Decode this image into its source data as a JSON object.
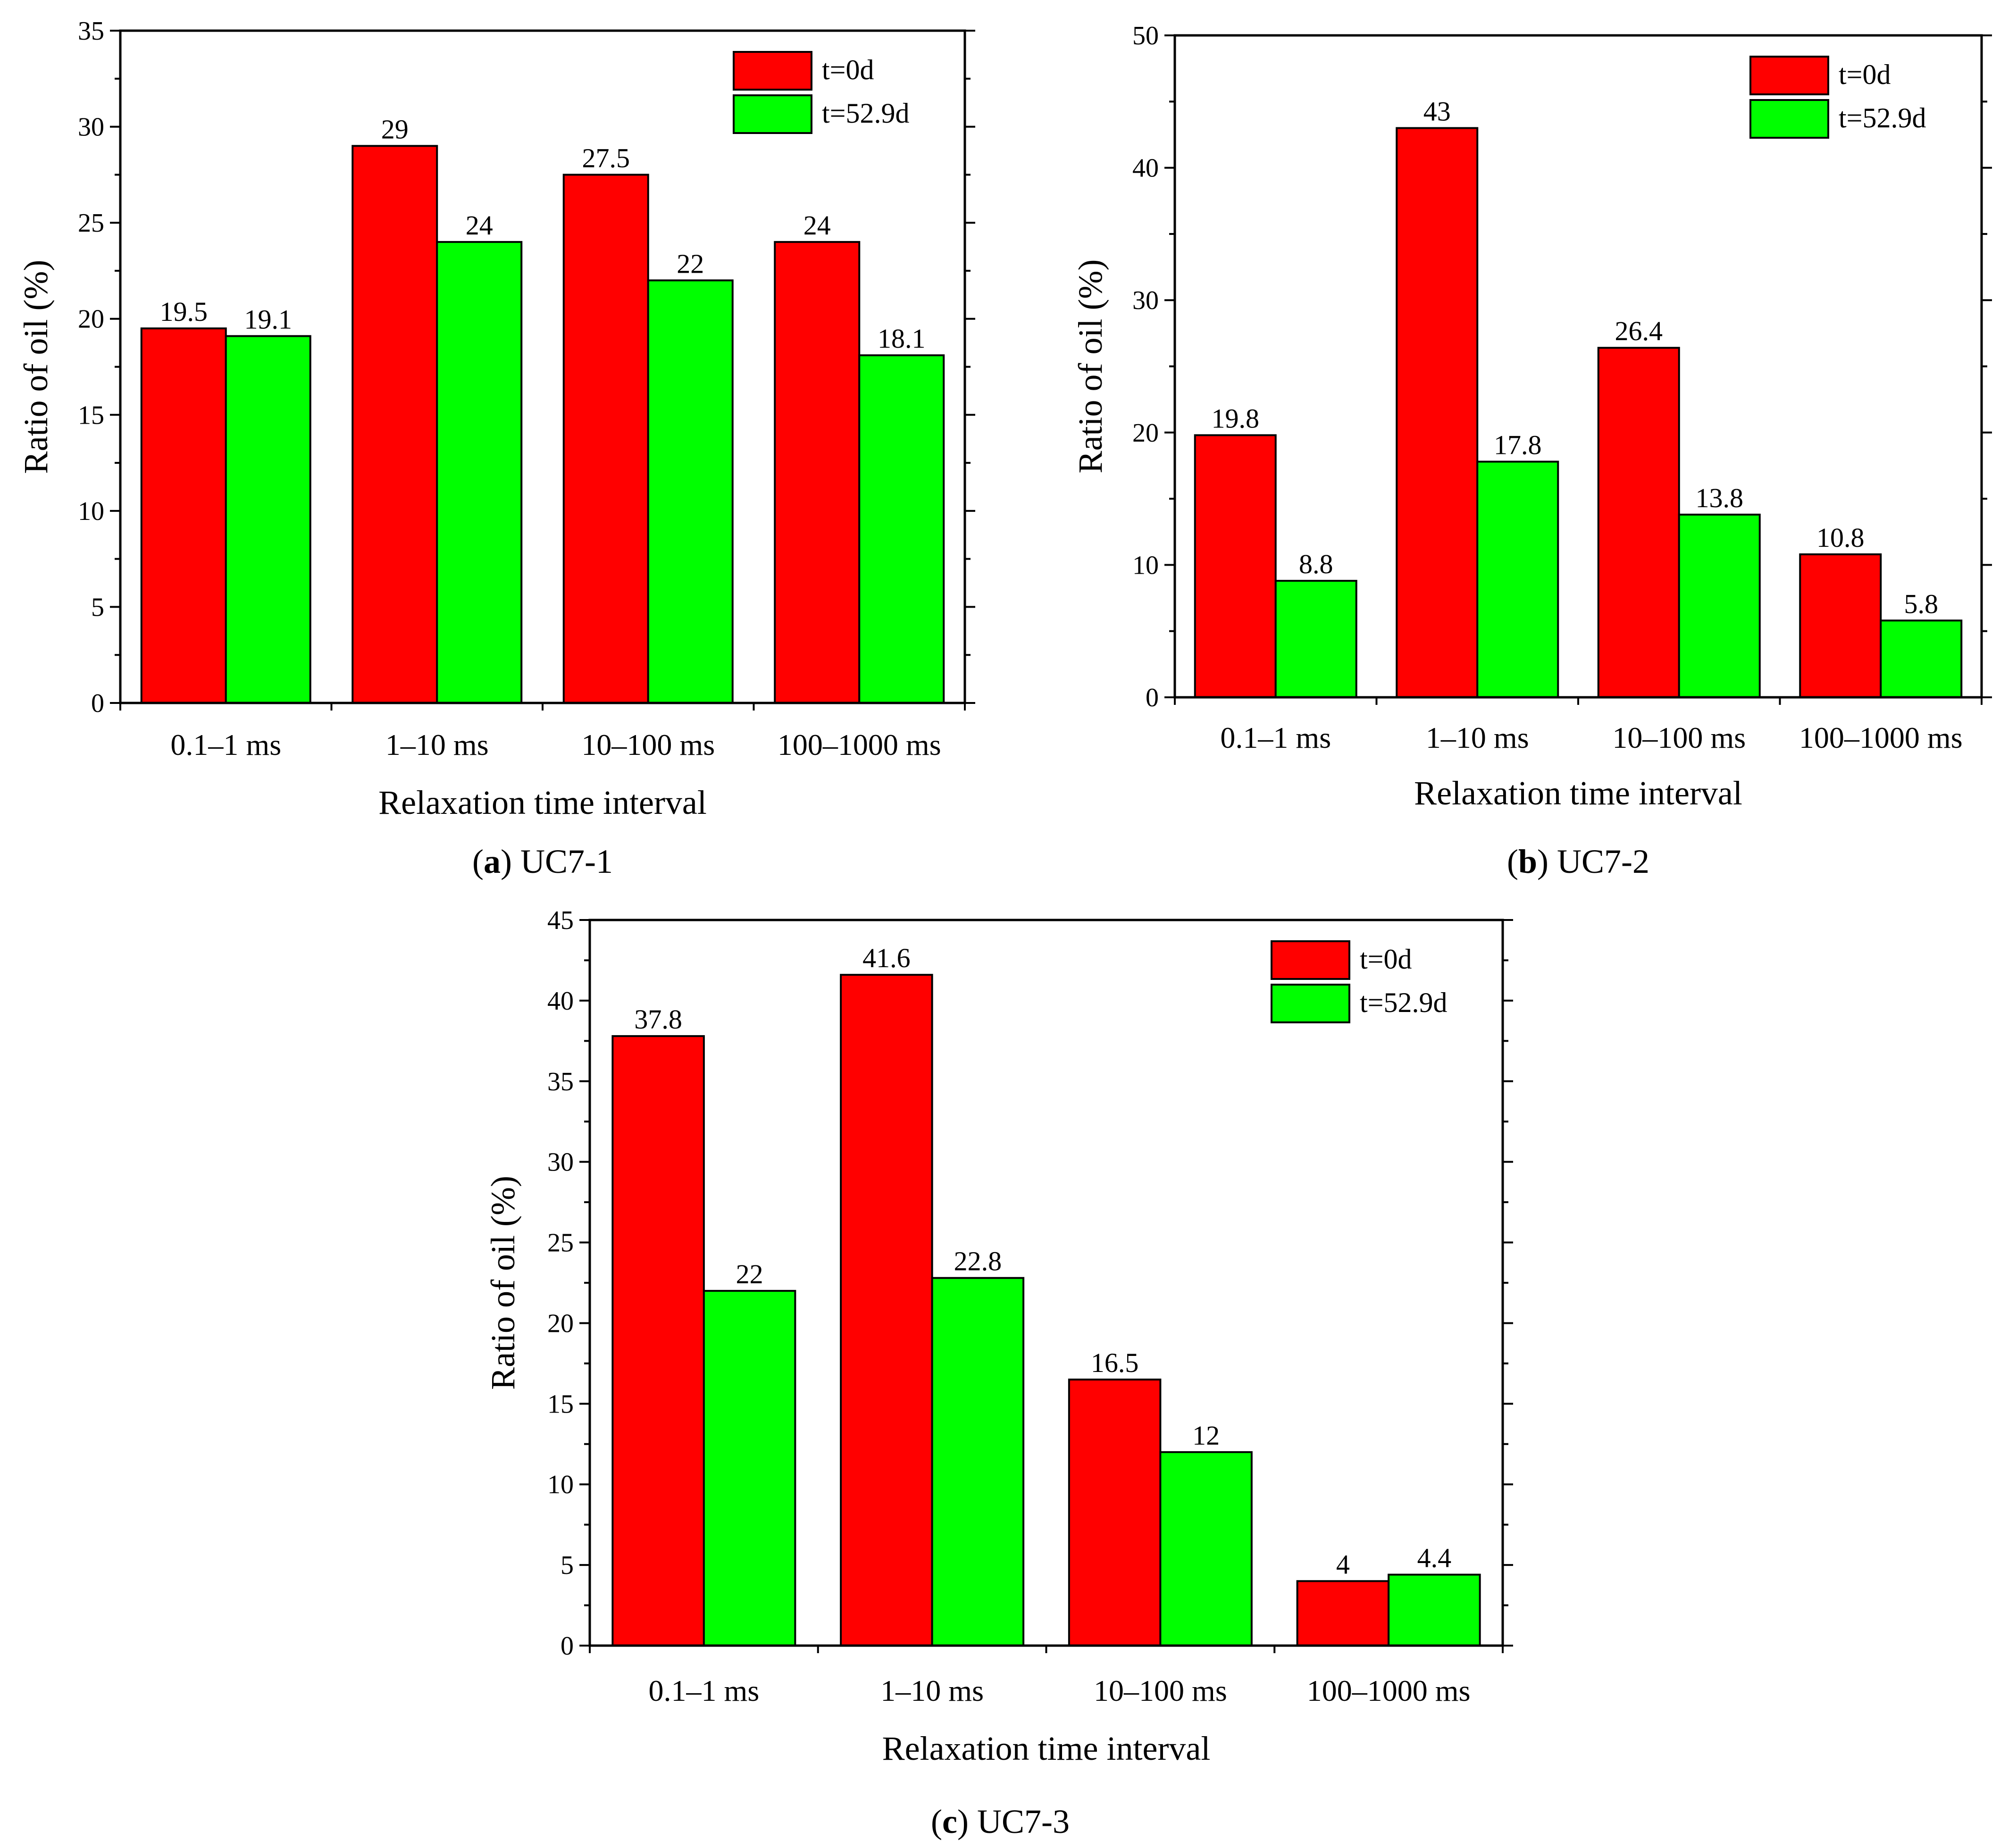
{
  "chart_data": [
    {
      "type": "bar",
      "caption_letter": "a",
      "caption_text": " UC7-1",
      "xlabel": "Relaxation time interval",
      "ylabel": "Ratio of oil (%)",
      "categories": [
        "0.1–1 ms",
        "1–10 ms",
        "10–100 ms",
        "100–1000 ms"
      ],
      "series": [
        {
          "name": "t=0d",
          "color": "#ff0000",
          "values": [
            19.5,
            29,
            27.5,
            24
          ],
          "labels": [
            "19.5",
            "29",
            "27.5",
            "24"
          ]
        },
        {
          "name": "t=52.9d",
          "color": "#00ff00",
          "values": [
            19.1,
            24,
            22,
            18.1
          ],
          "labels": [
            "19.1",
            "24",
            "22",
            "18.1"
          ]
        }
      ],
      "ylim": [
        0,
        35
      ],
      "yticks": [
        0,
        5,
        10,
        15,
        20,
        25,
        30,
        35
      ],
      "legend_position": "top-right",
      "grid": false
    },
    {
      "type": "bar",
      "caption_letter": "b",
      "caption_text": " UC7-2",
      "xlabel": "Relaxation time interval",
      "ylabel": "Ratio of oil (%)",
      "categories": [
        "0.1–1 ms",
        "1–10 ms",
        "10–100 ms",
        "100–1000 ms"
      ],
      "series": [
        {
          "name": "t=0d",
          "color": "#ff0000",
          "values": [
            19.8,
            43,
            26.4,
            10.8
          ],
          "labels": [
            "19.8",
            "43",
            "26.4",
            "10.8"
          ]
        },
        {
          "name": "t=52.9d",
          "color": "#00ff00",
          "values": [
            8.8,
            17.8,
            13.8,
            5.8
          ],
          "labels": [
            "8.8",
            "17.8",
            "13.8",
            "5.8"
          ]
        }
      ],
      "ylim": [
        0,
        50
      ],
      "yticks": [
        0,
        10,
        20,
        30,
        40,
        50
      ],
      "legend_position": "top-right",
      "grid": false
    },
    {
      "type": "bar",
      "caption_letter": "c",
      "caption_text": " UC7-3",
      "xlabel": "Relaxation time interval",
      "ylabel": "Ratio of oil (%)",
      "categories": [
        "0.1–1 ms",
        "1–10 ms",
        "10–100 ms",
        "100–1000 ms"
      ],
      "series": [
        {
          "name": "t=0d",
          "color": "#ff0000",
          "values": [
            37.8,
            41.6,
            16.5,
            4
          ],
          "labels": [
            "37.8",
            "41.6",
            "16.5",
            "4"
          ]
        },
        {
          "name": "t=52.9d",
          "color": "#00ff00",
          "values": [
            22,
            22.8,
            12,
            4.4
          ],
          "labels": [
            "22",
            "22.8",
            "12",
            "4.4"
          ]
        }
      ],
      "ylim": [
        0,
        45
      ],
      "yticks": [
        0,
        5,
        10,
        15,
        20,
        25,
        30,
        35,
        40,
        45
      ],
      "legend_position": "top-right",
      "grid": false
    }
  ]
}
